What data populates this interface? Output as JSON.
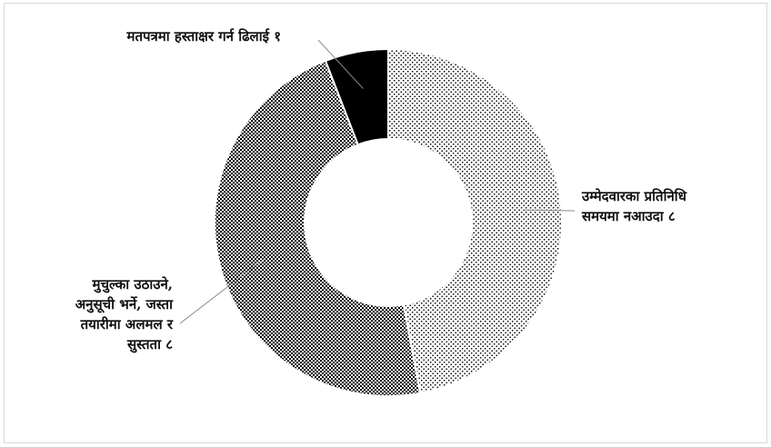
{
  "chart_data": {
    "type": "pie",
    "variant": "doughnut",
    "title": "",
    "slices": [
      {
        "label_lines": [
          "उम्मेदवारका प्रतिनिधि",
          "समयमा नआउदा ८"
        ],
        "value": 8,
        "pattern": "dots"
      },
      {
        "label_lines": [
          "मुचुल्का उठाउने,",
          "अनुसूची भर्ने, जस्ता",
          "तयारीमा अलमल र",
          "सुस्तता ८"
        ],
        "value": 8,
        "pattern": "checker"
      },
      {
        "label_lines": [
          "मतपत्रमा हस्ताक्षर गर्न ढिलाई १"
        ],
        "value": 1,
        "pattern": "solid"
      }
    ],
    "colors": {
      "fill_dark": "#000000",
      "fill_light": "#ffffff",
      "border": "#ffffff",
      "leader": "#8c8c8c"
    }
  }
}
